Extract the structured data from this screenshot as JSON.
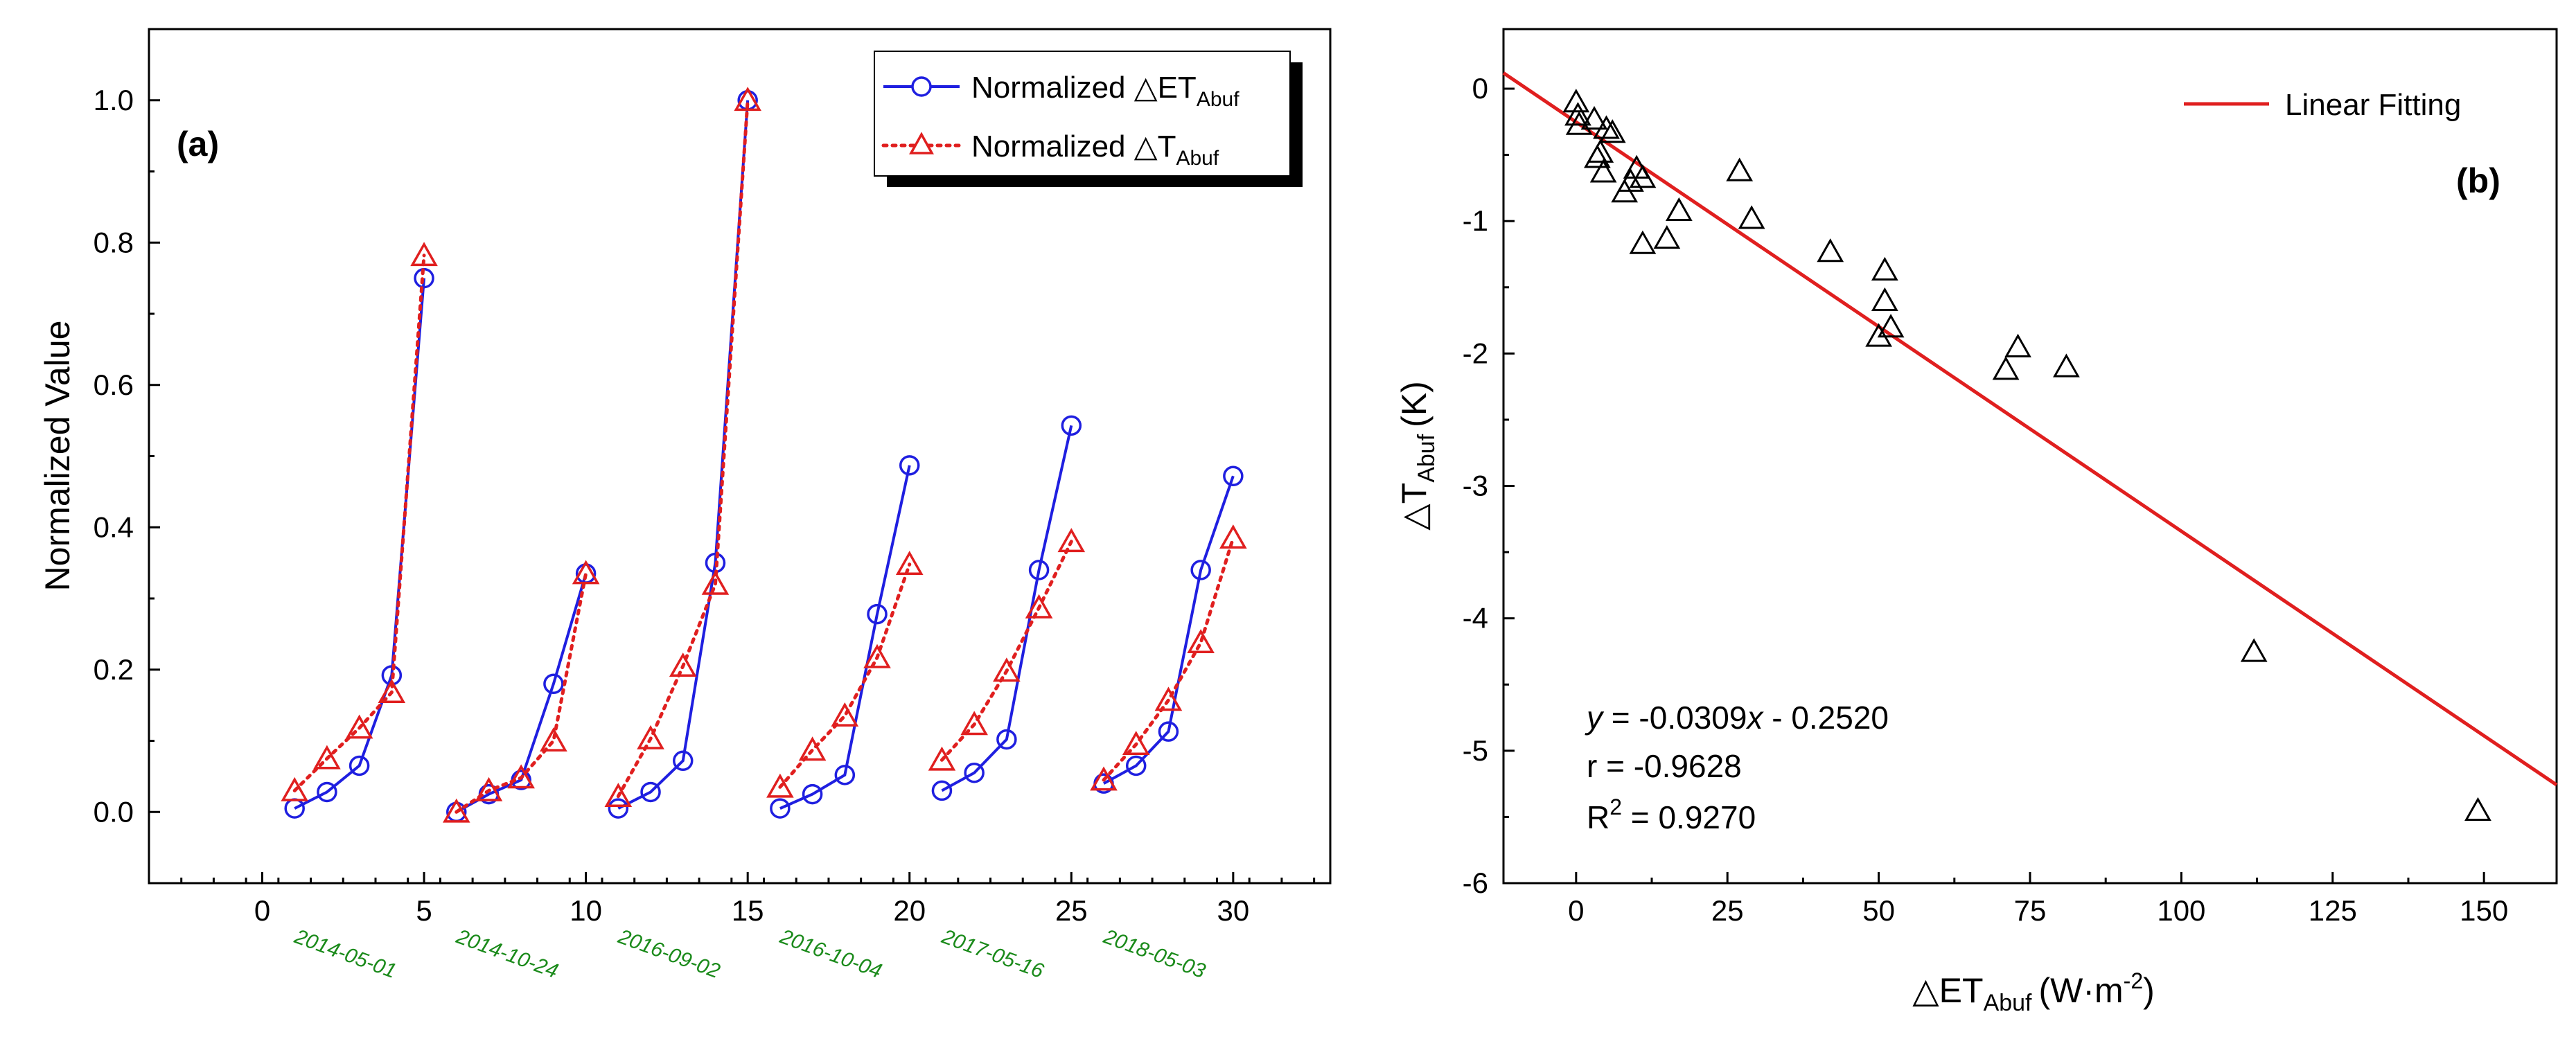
{
  "chart_data": [
    {
      "id": "a",
      "type": "line",
      "panel_label": "(a)",
      "xlabel": "",
      "ylabel": "Normalized Value",
      "xlim": [
        -3.5,
        33
      ],
      "ylim": [
        -0.1,
        1.1
      ],
      "x_ticks": [
        0,
        5,
        10,
        15,
        20,
        25,
        30
      ],
      "x_tick_labels": [
        "0",
        "5",
        "10",
        "15",
        "20",
        "25",
        "30"
      ],
      "y_ticks": [
        0.0,
        0.2,
        0.4,
        0.6,
        0.8,
        1.0
      ],
      "y_tick_labels": [
        "0.0",
        "0.2",
        "0.4",
        "0.6",
        "0.8",
        "1.0"
      ],
      "date_annotations": [
        {
          "x": 1,
          "label": "2014-05-01"
        },
        {
          "x": 6,
          "label": "2014-10-24"
        },
        {
          "x": 11,
          "label": "2016-09-02"
        },
        {
          "x": 16,
          "label": "2016-10-04"
        },
        {
          "x": 21,
          "label": "2017-05-16"
        },
        {
          "x": 26,
          "label": "2018-05-03"
        }
      ],
      "legend": {
        "position": "top-right",
        "entries": [
          {
            "text": "Normalized △ET",
            "sub": "Abuf"
          },
          {
            "text": "Normalized △T",
            "sub": "Abuf"
          }
        ]
      },
      "series": [
        {
          "name": "Normalized △ET_Abuf",
          "color": "#1f1fe0",
          "marker": "circle",
          "line": "solid",
          "segments": [
            [
              [
                1,
                0.005
              ],
              [
                2,
                0.028
              ],
              [
                3,
                0.065
              ],
              [
                4,
                0.192
              ],
              [
                5,
                0.75
              ]
            ],
            [
              [
                6,
                0.0
              ],
              [
                7,
                0.025
              ],
              [
                8,
                0.045
              ],
              [
                9,
                0.18
              ],
              [
                10,
                0.335
              ]
            ],
            [
              [
                11,
                0.005
              ],
              [
                12,
                0.028
              ],
              [
                13,
                0.072
              ],
              [
                14,
                0.35
              ],
              [
                15,
                1.0
              ]
            ],
            [
              [
                16,
                0.005
              ],
              [
                17,
                0.025
              ],
              [
                18,
                0.052
              ],
              [
                19,
                0.278
              ],
              [
                20,
                0.487
              ]
            ],
            [
              [
                21,
                0.03
              ],
              [
                22,
                0.055
              ],
              [
                23,
                0.102
              ],
              [
                24,
                0.34
              ],
              [
                25,
                0.543
              ]
            ],
            [
              [
                26,
                0.04
              ],
              [
                27,
                0.065
              ],
              [
                28,
                0.113
              ],
              [
                29,
                0.34
              ],
              [
                30,
                0.472
              ]
            ]
          ]
        },
        {
          "name": "Normalized △T_Abuf",
          "color": "#e01f1f",
          "marker": "triangle",
          "line": "dotted",
          "segments": [
            [
              [
                1,
                0.03
              ],
              [
                2,
                0.075
              ],
              [
                3,
                0.118
              ],
              [
                4,
                0.168
              ],
              [
                5,
                0.782
              ]
            ],
            [
              [
                6,
                0.0
              ],
              [
                7,
                0.03
              ],
              [
                8,
                0.048
              ],
              [
                9,
                0.1
              ],
              [
                10,
                0.335
              ]
            ],
            [
              [
                11,
                0.022
              ],
              [
                12,
                0.103
              ],
              [
                13,
                0.205
              ],
              [
                14,
                0.32
              ],
              [
                15,
                1.0
              ]
            ],
            [
              [
                16,
                0.035
              ],
              [
                17,
                0.087
              ],
              [
                18,
                0.135
              ],
              [
                19,
                0.217
              ],
              [
                20,
                0.348
              ]
            ],
            [
              [
                21,
                0.073
              ],
              [
                22,
                0.123
              ],
              [
                23,
                0.198
              ],
              [
                24,
                0.287
              ],
              [
                25,
                0.38
              ]
            ],
            [
              [
                26,
                0.045
              ],
              [
                27,
                0.095
              ],
              [
                28,
                0.157
              ],
              [
                29,
                0.238
              ],
              [
                30,
                0.385
              ]
            ]
          ]
        }
      ]
    },
    {
      "id": "b",
      "type": "scatter",
      "panel_label": "(b)",
      "xlabel": "△ET",
      "xlabel_sub": "Abuf",
      "xlabel_unit": "(W·m",
      "xlabel_sup": "-2",
      "xlabel_tail": ")",
      "ylabel": "△T",
      "ylabel_sub": "Abuf",
      "ylabel_unit": "(K)",
      "xlim": [
        -12,
        162
      ],
      "ylim": [
        -6,
        0.45
      ],
      "x_ticks": [
        0,
        25,
        50,
        75,
        100,
        125,
        150
      ],
      "x_tick_labels": [
        "0",
        "25",
        "50",
        "75",
        "100",
        "125",
        "150"
      ],
      "y_ticks": [
        0,
        -1,
        -2,
        -3,
        -4,
        -5,
        -6
      ],
      "y_tick_labels": [
        "0",
        "-1",
        "-2",
        "-3",
        "-4",
        "-5",
        "-6"
      ],
      "legend": {
        "position": "top-right",
        "entries": [
          {
            "text": "Linear Fitting"
          }
        ]
      },
      "fit": {
        "slope": -0.0309,
        "intercept": -0.252,
        "color": "#e01f1f"
      },
      "equation": {
        "line1_y": "y",
        "line1_mid": " = -0.0309",
        "line1_x": "x",
        "line1_tail": " - 0.2520",
        "line2": "r =  -0.9628",
        "line3_a": "R",
        "line3_sup": "2",
        "line3_b": " = 0.9270"
      },
      "points": [
        [
          0,
          -0.1
        ],
        [
          0.3,
          -0.2
        ],
        [
          0.5,
          -0.27
        ],
        [
          3,
          -0.23
        ],
        [
          5,
          -0.3
        ],
        [
          6,
          -0.33
        ],
        [
          3.5,
          -0.52
        ],
        [
          4,
          -0.48
        ],
        [
          4.5,
          -0.63
        ],
        [
          8,
          -0.78
        ],
        [
          9,
          -0.7
        ],
        [
          10,
          -0.6
        ],
        [
          11,
          -0.67
        ],
        [
          11,
          -1.17
        ],
        [
          15,
          -1.13
        ],
        [
          17,
          -0.92
        ],
        [
          27,
          -0.62
        ],
        [
          29,
          -0.98
        ],
        [
          42,
          -1.23
        ],
        [
          50,
          -1.87
        ],
        [
          51,
          -1.6
        ],
        [
          51,
          -1.37
        ],
        [
          52,
          -1.8
        ],
        [
          71,
          -2.12
        ],
        [
          73,
          -1.95
        ],
        [
          81,
          -2.1
        ],
        [
          112,
          -4.25
        ],
        [
          149,
          -5.45
        ]
      ]
    }
  ]
}
